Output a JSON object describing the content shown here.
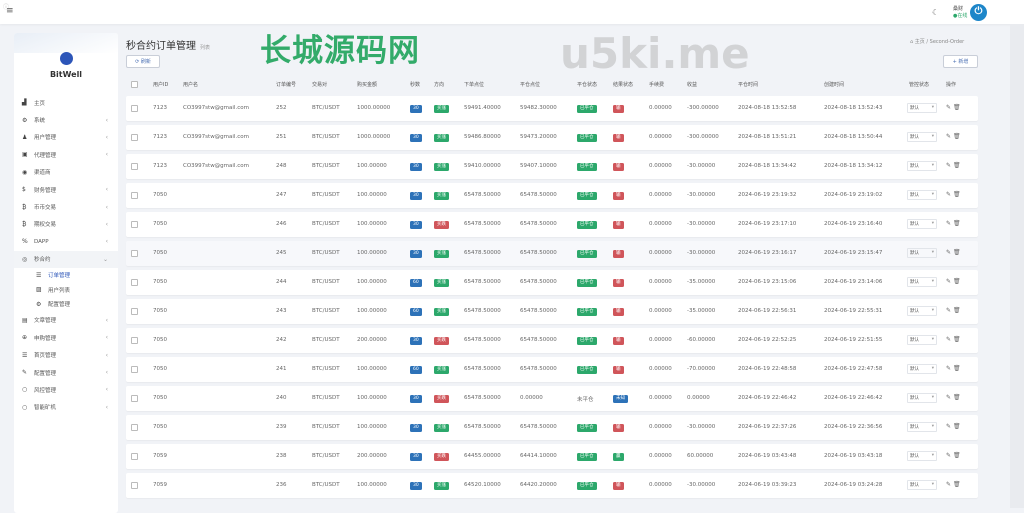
{
  "topbar": {
    "user_name": "桑财",
    "user_status": "在线"
  },
  "sidebar": {
    "brand": "BitWell",
    "items": [
      {
        "label": "主页",
        "icon": "chart-icon"
      },
      {
        "label": "系统",
        "icon": "gear-icon",
        "chev": "‹"
      },
      {
        "label": "用户管理",
        "icon": "user-icon",
        "chev": "‹"
      },
      {
        "label": "代理管理",
        "icon": "id-card-icon",
        "chev": "‹"
      },
      {
        "label": "渠道商",
        "icon": "user-circle-icon"
      },
      {
        "label": "财务管理",
        "icon": "dollar-icon",
        "chev": "‹"
      },
      {
        "label": "币币交易",
        "icon": "bitcoin-icon",
        "chev": "‹"
      },
      {
        "label": "期权交易",
        "icon": "bitcoin-icon",
        "chev": "‹"
      },
      {
        "label": "DAPP",
        "icon": "link-icon",
        "chev": "‹"
      },
      {
        "label": "秒合约",
        "icon": "clock-icon",
        "chev": "⌄",
        "open": true
      },
      {
        "label": "订单管理",
        "icon": "list-icon",
        "sub": true,
        "active": true
      },
      {
        "label": "用户列表",
        "icon": "image-icon",
        "sub": true
      },
      {
        "label": "配置管理",
        "icon": "gear-icon",
        "sub": true
      },
      {
        "label": "文章管理",
        "icon": "newspaper-icon",
        "chev": "‹"
      },
      {
        "label": "申购管理",
        "icon": "lifebuoy-icon",
        "chev": "‹"
      },
      {
        "label": "首页管理",
        "icon": "list-icon",
        "chev": "‹"
      },
      {
        "label": "配置管理",
        "icon": "wrench-icon",
        "chev": "‹"
      },
      {
        "label": "风控管理",
        "icon": "circle-icon",
        "chev": "‹"
      },
      {
        "label": "智能矿机",
        "icon": "circle-icon",
        "chev": "‹"
      }
    ]
  },
  "page": {
    "title": "秒合约订单管理",
    "subtitle": "列表",
    "breadcrumb_home": "主页",
    "breadcrumb_current": "Second-Order",
    "refresh_label": "刷新",
    "add_label": "新增"
  },
  "table": {
    "headers": [
      "用户ID",
      "用户名",
      "订单编号",
      "交易对",
      "购买金额",
      "秒数",
      "方向",
      "下单点位",
      "平仓点位",
      "平仓状态",
      "结果状态",
      "手续费",
      "收益",
      "平仓时间",
      "创建时间",
      "管控状态",
      "操作"
    ],
    "control_default": "默认",
    "rows": [
      [
        "7123",
        "CO3997stw@gmail.com",
        "252",
        "BTC/USDT",
        "1000.00000",
        "30",
        "买涨",
        "59491.40000",
        "59482.30000",
        "已平仓",
        "输",
        "0.00000",
        "-300.00000",
        "2024-08-18 13:52:58",
        "2024-08-18 13:52:43"
      ],
      [
        "7123",
        "CO3997stw@gmail.com",
        "251",
        "BTC/USDT",
        "1000.00000",
        "30",
        "买涨",
        "59486.80000",
        "59473.20000",
        "已平仓",
        "输",
        "0.00000",
        "-300.00000",
        "2024-08-18 13:51:21",
        "2024-08-18 13:50:44"
      ],
      [
        "7123",
        "CO3997stw@gmail.com",
        "248",
        "BTC/USDT",
        "100.00000",
        "30",
        "买涨",
        "59410.00000",
        "59407.10000",
        "已平仓",
        "输",
        "0.00000",
        "-30.00000",
        "2024-08-18 13:34:42",
        "2024-08-18 13:34:12"
      ],
      [
        "7050",
        "",
        "247",
        "BTC/USDT",
        "100.00000",
        "30",
        "买涨",
        "65478.50000",
        "65478.50000",
        "已平仓",
        "输",
        "0.00000",
        "-30.00000",
        "2024-06-19 23:19:32",
        "2024-06-19 23:19:02"
      ],
      [
        "7050",
        "",
        "246",
        "BTC/USDT",
        "100.00000",
        "30",
        "买跌",
        "65478.50000",
        "65478.50000",
        "已平仓",
        "输",
        "0.00000",
        "-30.00000",
        "2024-06-19 23:17:10",
        "2024-06-19 23:16:40"
      ],
      [
        "7050",
        "",
        "245",
        "BTC/USDT",
        "100.00000",
        "30",
        "买涨",
        "65478.50000",
        "65478.50000",
        "已平仓",
        "输",
        "0.00000",
        "-30.00000",
        "2024-06-19 23:16:17",
        "2024-06-19 23:15:47"
      ],
      [
        "7050",
        "",
        "244",
        "BTC/USDT",
        "100.00000",
        "60",
        "买涨",
        "65478.50000",
        "65478.50000",
        "已平仓",
        "输",
        "0.00000",
        "-35.00000",
        "2024-06-19 23:15:06",
        "2024-06-19 23:14:06"
      ],
      [
        "7050",
        "",
        "243",
        "BTC/USDT",
        "100.00000",
        "60",
        "买涨",
        "65478.50000",
        "65478.50000",
        "已平仓",
        "输",
        "0.00000",
        "-35.00000",
        "2024-06-19 22:56:31",
        "2024-06-19 22:55:31"
      ],
      [
        "7050",
        "",
        "242",
        "BTC/USDT",
        "200.00000",
        "30",
        "买跌",
        "65478.50000",
        "65478.50000",
        "已平仓",
        "输",
        "0.00000",
        "-60.00000",
        "2024-06-19 22:52:25",
        "2024-06-19 22:51:55"
      ],
      [
        "7050",
        "",
        "241",
        "BTC/USDT",
        "100.00000",
        "60",
        "买涨",
        "65478.50000",
        "65478.50000",
        "已平仓",
        "输",
        "0.00000",
        "-70.00000",
        "2024-06-19 22:48:58",
        "2024-06-19 22:47:58"
      ],
      [
        "7050",
        "",
        "240",
        "BTC/USDT",
        "100.00000",
        "30",
        "买跌",
        "65478.50000",
        "0.00000",
        "未平仓",
        "未知",
        "0.00000",
        "0.00000",
        "2024-06-19 22:46:42",
        "2024-06-19 22:46:42"
      ],
      [
        "7050",
        "",
        "239",
        "BTC/USDT",
        "100.00000",
        "30",
        "买涨",
        "65478.50000",
        "65478.50000",
        "已平仓",
        "输",
        "0.00000",
        "-30.00000",
        "2024-06-19 22:37:26",
        "2024-06-19 22:36:56"
      ],
      [
        "7059",
        "",
        "238",
        "BTC/USDT",
        "200.00000",
        "30",
        "买跌",
        "64455.00000",
        "64414.10000",
        "已平仓",
        "赢",
        "0.00000",
        "60.00000",
        "2024-06-19 03:43:48",
        "2024-06-19 03:43:18"
      ],
      [
        "7059",
        "",
        "236",
        "BTC/USDT",
        "100.00000",
        "30",
        "买涨",
        "64520.10000",
        "64420.20000",
        "已平仓",
        "输",
        "0.00000",
        "-30.00000",
        "2024-06-19 03:39:23",
        "2024-06-19 03:24:28"
      ]
    ]
  },
  "watermarks": [
    "长城源码网",
    "u5ki.me"
  ],
  "colors": {
    "blue": "#2d72b8",
    "green": "#2ca86b",
    "red": "#d0555a",
    "accent": "#2c55b8"
  }
}
